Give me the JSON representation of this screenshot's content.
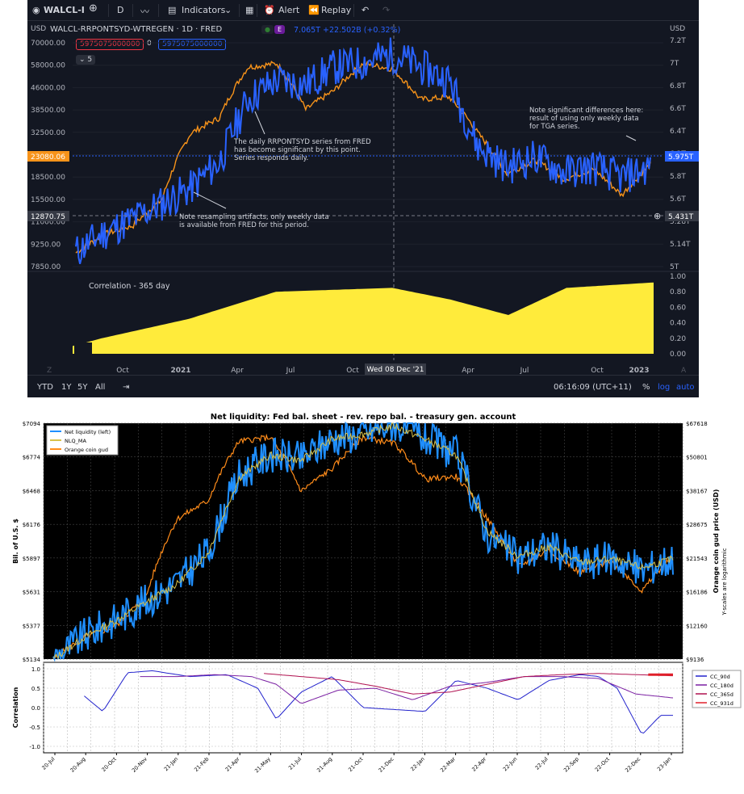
{
  "top_panel": {
    "toolbar": {
      "symbol": "WALCL-I",
      "add_icon": "plus-circle-icon",
      "interval": "D",
      "indicators_label": "Indicators",
      "alert_label": "Alert",
      "replay_label": "Replay"
    },
    "legend": {
      "title": "WALCL-RRPONTSYD-WTREGEN · 1D · FRED",
      "badge": "E",
      "value": "7.065T",
      "change": "+22.502B (+0.32%)",
      "sell_value": "5975075000000",
      "zero": "0",
      "buy_value": "5975075000000",
      "collapse_count": "5"
    },
    "left_axis_label": "USD",
    "right_axis_label": "USD",
    "left_ticks": [
      "70000.00",
      "58000.00",
      "46000.00",
      "38500.00",
      "32500.00",
      "26500.00",
      "18500.00",
      "15500.00",
      "11000.00",
      "9250.00",
      "7850.00"
    ],
    "left_price_tag": "23080.06",
    "left_cross_tag": "12870.75",
    "right_ticks": [
      "7.2T",
      "7T",
      "6.8T",
      "6.6T",
      "6.4T",
      "6.2T",
      "5.8T",
      "5.6T",
      "5.28T",
      "5.14T",
      "5T"
    ],
    "right_price_tag": "5.975T",
    "right_cross_tag": "5.431T",
    "corr_ticks": [
      "1.00",
      "0.80",
      "0.60",
      "0.40",
      "0.20",
      "0.00"
    ],
    "corr_label": "Correlation - 365 day",
    "x_ticks": [
      "Oct",
      "2021",
      "Apr",
      "Jul",
      "Oct",
      "Apr",
      "Jul",
      "Oct",
      "2023"
    ],
    "crosshair_date": "Wed 08 Dec '21",
    "annotations": {
      "a1": "The daily RRPONTSYD series from FRED\nhas become significant by this point.\nSeries responds daily.",
      "a2": "Note resampling artifacts, only weekly data\nis available from FRED for this period.",
      "a3": "Note significant differences here:\nresult of using only weekly data\nfor TGA series."
    },
    "bottom": {
      "ranges": [
        "YTD",
        "1Y",
        "5Y",
        "All"
      ],
      "clock": "06:16:09 (UTC+11)",
      "percent": "%",
      "log": "log",
      "auto": "auto"
    },
    "colors": {
      "bg": "#131722",
      "blue": "#2962ff",
      "orange": "#f7931a",
      "yellow": "#ffeb3b"
    }
  },
  "chart_data": [
    {
      "type": "line",
      "title": "Net liquidity: Fed bal. sheet - rev. repo bal. - treasury gen. account",
      "ylabel": "Bil. of U.S. $",
      "ylabel_right": "Orange coin gud price (USD)",
      "side_note": "Y-scales are logarithmic",
      "y_ticks_left": [
        "$7094",
        "$6774",
        "$6468",
        "$6176",
        "$5897",
        "$5631",
        "$5377",
        "$5134"
      ],
      "y_ticks_right": [
        "$67618",
        "$50801",
        "$38167",
        "$28675",
        "$21543",
        "$16186",
        "$12160",
        "$9136"
      ],
      "x_ticks": [
        "20-Jul",
        "20-Aug",
        "20-Oct",
        "20-Nov",
        "21-Jan",
        "21-Feb",
        "21-Apr",
        "21-May",
        "21-Jul",
        "21-Aug",
        "21-Oct",
        "21-Dec",
        "22-Jan",
        "22-Mar",
        "22-Apr",
        "22-Jun",
        "22-Jul",
        "22-Sep",
        "22-Oct",
        "22-Dec",
        "23-Jan"
      ],
      "y_log": true,
      "series": [
        {
          "name": "Net liquidity (left)",
          "color": "#1f8fff",
          "x": [
            0,
            0.05,
            0.1,
            0.15,
            0.2,
            0.25,
            0.3,
            0.35,
            0.4,
            0.45,
            0.5,
            0.55,
            0.6,
            0.65,
            0.7,
            0.75,
            0.8,
            0.85,
            0.9,
            0.95,
            1.0
          ],
          "values": [
            5134,
            5300,
            5420,
            5560,
            5700,
            5950,
            6600,
            6800,
            6750,
            6950,
            7000,
            7094,
            6950,
            6800,
            6100,
            5900,
            6000,
            5850,
            5900,
            5800,
            5900
          ]
        },
        {
          "name": "NLQ_MA",
          "color": "#d8c24a",
          "x": [
            0,
            0.05,
            0.1,
            0.15,
            0.2,
            0.25,
            0.3,
            0.35,
            0.4,
            0.45,
            0.5,
            0.55,
            0.6,
            0.65,
            0.7,
            0.75,
            0.8,
            0.85,
            0.9,
            0.95,
            1.0
          ],
          "values": [
            5134,
            5290,
            5410,
            5550,
            5690,
            5940,
            6580,
            6790,
            6740,
            6940,
            6990,
            7070,
            6940,
            6790,
            6120,
            5910,
            5990,
            5860,
            5890,
            5820,
            5890
          ]
        },
        {
          "name": "Orange coin gud",
          "color": "#ff8c1a",
          "x": [
            0,
            0.05,
            0.1,
            0.15,
            0.2,
            0.25,
            0.3,
            0.35,
            0.4,
            0.45,
            0.5,
            0.55,
            0.6,
            0.65,
            0.7,
            0.75,
            0.8,
            0.85,
            0.9,
            0.95,
            1.0
          ],
          "values": [
            9136,
            11000,
            12000,
            15500,
            30000,
            35000,
            58000,
            60000,
            38000,
            46000,
            60000,
            57000,
            42000,
            43000,
            30000,
            20000,
            23000,
            19000,
            21000,
            16200,
            22000
          ]
        }
      ]
    },
    {
      "type": "line",
      "ylabel": "Correlation",
      "y_ticks": [
        "1.0",
        "0.5",
        "0.0",
        "-0.5",
        "-1.0"
      ],
      "ylim": [
        -1,
        1
      ],
      "series": [
        {
          "name": "CC_90d",
          "color": "#2222cc",
          "x": [
            0.05,
            0.08,
            0.12,
            0.16,
            0.22,
            0.28,
            0.33,
            0.36,
            0.4,
            0.45,
            0.5,
            0.55,
            0.6,
            0.65,
            0.7,
            0.75,
            0.8,
            0.85,
            0.88,
            0.91,
            0.95,
            0.98,
            1.0
          ],
          "values": [
            0.3,
            -0.1,
            0.9,
            0.95,
            0.8,
            0.85,
            0.5,
            -0.3,
            0.4,
            0.8,
            0.0,
            -0.05,
            -0.1,
            0.7,
            0.5,
            0.2,
            0.7,
            0.85,
            0.8,
            0.5,
            -0.7,
            -0.2,
            -0.2
          ]
        },
        {
          "name": "CC_180d",
          "color": "#7a1fa2",
          "x": [
            0.14,
            0.2,
            0.26,
            0.32,
            0.36,
            0.4,
            0.46,
            0.52,
            0.58,
            0.64,
            0.7,
            0.76,
            0.82,
            0.88,
            0.94,
            1.0
          ],
          "values": [
            0.8,
            0.8,
            0.85,
            0.8,
            0.6,
            0.1,
            0.45,
            0.5,
            0.2,
            0.55,
            0.65,
            0.8,
            0.8,
            0.75,
            0.35,
            0.25
          ]
        },
        {
          "name": "CC_365d",
          "color": "#b0104f",
          "x": [
            0.34,
            0.4,
            0.46,
            0.52,
            0.58,
            0.64,
            0.7,
            0.76,
            0.82,
            0.88,
            0.94,
            1.0
          ],
          "values": [
            0.88,
            0.8,
            0.72,
            0.55,
            0.35,
            0.4,
            0.6,
            0.8,
            0.85,
            0.88,
            0.85,
            0.82
          ]
        },
        {
          "name": "CC_931d",
          "color": "#e0202a",
          "x": [
            0.96,
            1.0
          ],
          "values": [
            0.85,
            0.85
          ]
        }
      ]
    }
  ]
}
